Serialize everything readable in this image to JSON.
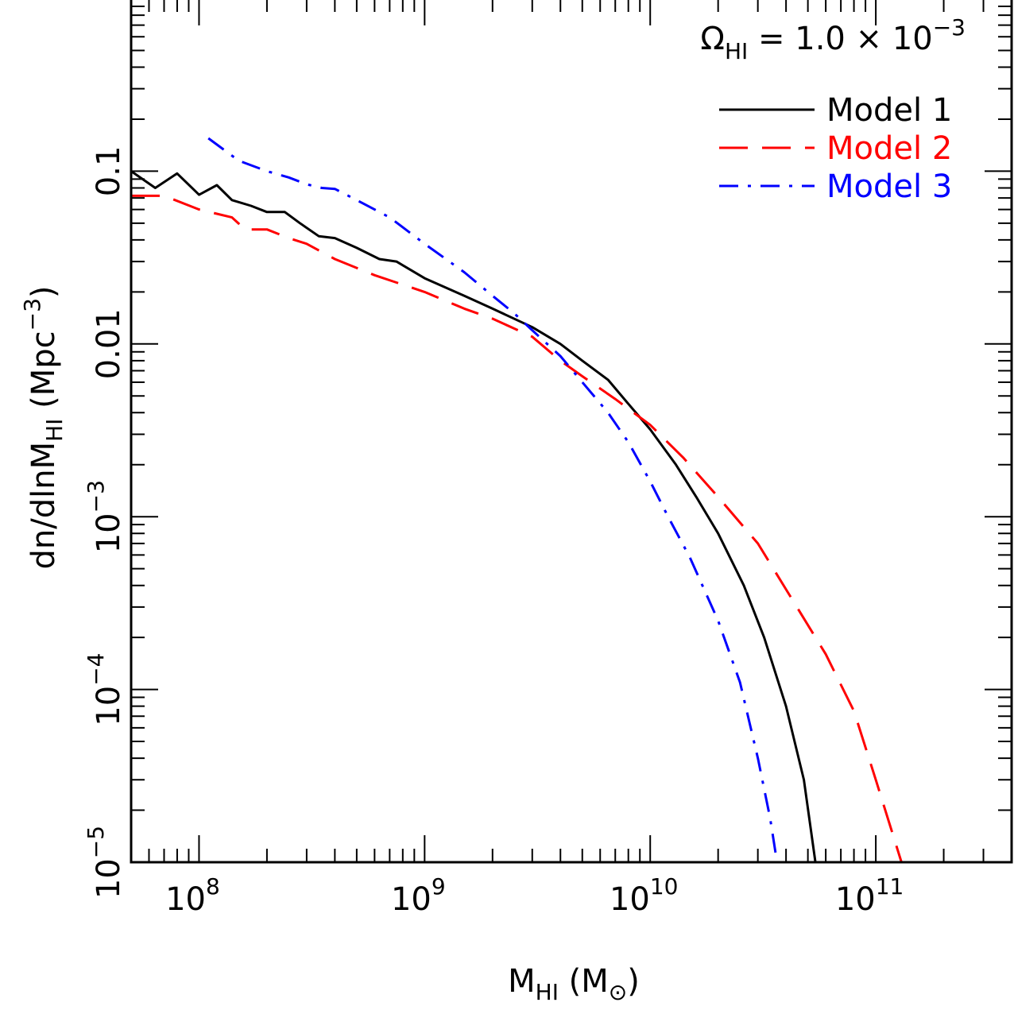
{
  "chart_data": {
    "type": "line",
    "x_scale": "log",
    "y_scale": "log",
    "xlim": [
      50000000,
      400000000000
    ],
    "ylim": [
      1e-05,
      1
    ],
    "annotation": {
      "omega": "Ω",
      "omega_sub": "HI",
      "value_text": " = 1.0 × 10",
      "exponent": "−3"
    },
    "xlabel": {
      "main": "M",
      "sub": "HI",
      "units": " (M",
      "units_sub": "⊙",
      "close": ")"
    },
    "ylabel": {
      "main": "dn/dlnM",
      "sub": "HI",
      "units": " (Mpc",
      "exponent": "−3",
      "close": ")"
    },
    "x_ticks": [
      {
        "value": 100000000,
        "base": "10",
        "exp": "8"
      },
      {
        "value": 1000000000,
        "base": "10",
        "exp": "9"
      },
      {
        "value": 10000000000,
        "base": "10",
        "exp": "10"
      },
      {
        "value": 100000000000,
        "base": "10",
        "exp": "11"
      }
    ],
    "y_ticks": [
      {
        "value": 1e-05,
        "base": "10",
        "exp": "−5",
        "text": ""
      },
      {
        "value": 0.0001,
        "base": "10",
        "exp": "−4",
        "text": ""
      },
      {
        "value": 0.001,
        "base": "10",
        "exp": "−3",
        "text": ""
      },
      {
        "value": 0.01,
        "base": "",
        "exp": "",
        "text": "0.01"
      },
      {
        "value": 0.1,
        "base": "",
        "exp": "",
        "text": "0.1"
      }
    ],
    "legend_position": "top-right",
    "series": [
      {
        "name": "Model 1",
        "color": "#000000",
        "dash": "solid",
        "x": [
          50000000,
          64000000,
          80000000,
          100000000,
          120000000,
          140000000,
          170000000,
          200000000,
          240000000,
          280000000,
          340000000,
          400000000,
          500000000,
          630000000,
          750000000,
          1000000000,
          1500000000,
          2000000000,
          3000000000,
          4000000000,
          5000000000,
          6500000000,
          8000000000,
          10000000000,
          13000000000,
          16000000000,
          20000000000,
          26000000000,
          32000000000,
          40000000000,
          48000000000,
          54000000000
        ],
        "y": [
          0.1,
          0.08,
          0.097,
          0.073,
          0.083,
          0.068,
          0.063,
          0.058,
          0.058,
          0.05,
          0.042,
          0.041,
          0.036,
          0.031,
          0.03,
          0.024,
          0.019,
          0.016,
          0.0125,
          0.01,
          0.008,
          0.0062,
          0.0045,
          0.0032,
          0.002,
          0.0013,
          0.0008,
          0.0004,
          0.0002,
          8e-05,
          3e-05,
          1e-05
        ]
      },
      {
        "name": "Model 2",
        "color": "#ff0000",
        "dash": "long-dash",
        "x": [
          50000000,
          70000000,
          100000000,
          140000000,
          160000000,
          200000000,
          250000000,
          300000000,
          400000000,
          600000000,
          1000000000,
          1500000000,
          2000000000,
          3000000000,
          4000000000,
          5000000000,
          7000000000,
          10000000000,
          14000000000,
          20000000000,
          30000000000,
          40000000000,
          60000000000,
          80000000000,
          100000000000,
          130000000000
        ],
        "y": [
          0.072,
          0.072,
          0.06,
          0.054,
          0.046,
          0.046,
          0.041,
          0.038,
          0.031,
          0.025,
          0.02,
          0.016,
          0.014,
          0.011,
          0.008,
          0.0065,
          0.0048,
          0.0034,
          0.0022,
          0.0013,
          0.0007,
          0.00038,
          0.00016,
          7.5e-05,
          3e-05,
          1e-05
        ]
      },
      {
        "name": "Model 3",
        "color": "#0000ff",
        "dash": "dash-dot",
        "x": [
          110000000,
          150000000,
          200000000,
          250000000,
          300000000,
          350000000,
          400000000,
          500000000,
          700000000,
          1000000000,
          1500000000,
          2000000000,
          2500000000,
          3000000000,
          4000000000,
          5000000000,
          6500000000,
          8000000000,
          10000000000,
          12000000000,
          15000000000,
          20000000000,
          25000000000,
          30000000000,
          34000000000,
          36500000000
        ],
        "y": [
          0.155,
          0.115,
          0.1,
          0.092,
          0.084,
          0.08,
          0.079,
          0.068,
          0.054,
          0.038,
          0.026,
          0.019,
          0.015,
          0.012,
          0.0085,
          0.006,
          0.004,
          0.0027,
          0.0016,
          0.001,
          0.00058,
          0.00025,
          0.00011,
          4e-05,
          1.8e-05,
          1e-05
        ]
      }
    ]
  }
}
